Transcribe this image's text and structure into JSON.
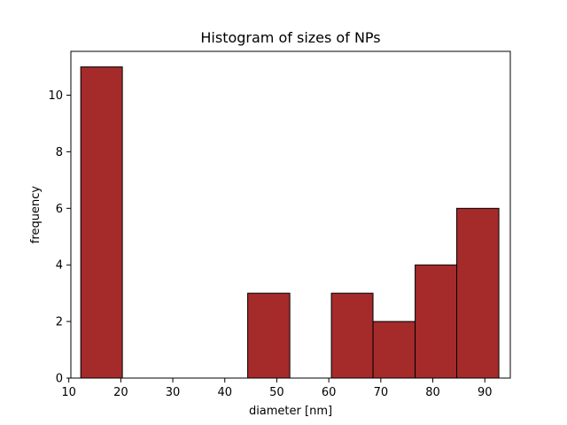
{
  "chart_data": {
    "type": "bar",
    "title": "Histogram of sizes of NPs",
    "xlabel": "diameter [nm]",
    "ylabel": "frequency",
    "xlim": [
      10.4,
      94.9
    ],
    "ylim": [
      0,
      11.55
    ],
    "grid": false,
    "bar_color": "#a52a2a",
    "edge_color": "#000000",
    "x_ticks": [
      10,
      20,
      30,
      40,
      50,
      60,
      70,
      80,
      90
    ],
    "y_ticks": [
      0,
      2,
      4,
      6,
      8,
      10
    ],
    "bins": [
      {
        "start": 12.3,
        "end": 20.3,
        "count": 11
      },
      {
        "start": 20.3,
        "end": 28.4,
        "count": 0
      },
      {
        "start": 28.4,
        "end": 36.4,
        "count": 0
      },
      {
        "start": 36.4,
        "end": 44.4,
        "count": 0
      },
      {
        "start": 44.4,
        "end": 52.5,
        "count": 3
      },
      {
        "start": 52.5,
        "end": 60.5,
        "count": 0
      },
      {
        "start": 60.5,
        "end": 68.5,
        "count": 3
      },
      {
        "start": 68.5,
        "end": 76.6,
        "count": 2
      },
      {
        "start": 76.6,
        "end": 84.6,
        "count": 4
      },
      {
        "start": 84.6,
        "end": 92.7,
        "count": 6
      }
    ]
  }
}
